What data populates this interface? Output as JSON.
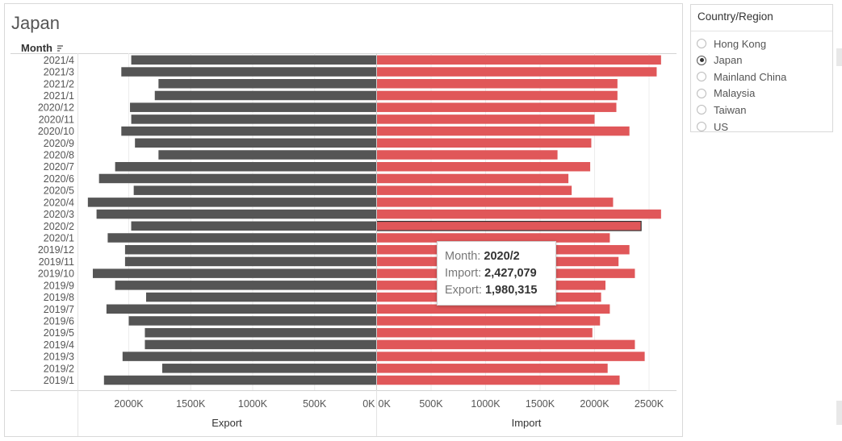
{
  "title": "Japan",
  "header": {
    "month_label": "Month"
  },
  "legend": {
    "title": "Country/Region",
    "selected": "Japan",
    "options": [
      "Hong Kong",
      "Japan",
      "Mainland China",
      "Malaysia",
      "Taiwan",
      "US"
    ]
  },
  "tooltip": {
    "month_label": "Month:",
    "month_value": "2020/2",
    "import_label": "Import:",
    "import_value": "2,427,079",
    "export_label": "Export:",
    "export_value": "1,980,315"
  },
  "colors": {
    "export": "#555555",
    "import": "#e05759",
    "highlight_border": "#333333"
  },
  "chart_data": {
    "type": "bar",
    "orientation": "horizontal",
    "categories": [
      "2021/4",
      "2021/3",
      "2021/2",
      "2021/1",
      "2020/12",
      "2020/11",
      "2020/10",
      "2020/9",
      "2020/8",
      "2020/7",
      "2020/6",
      "2020/5",
      "2020/4",
      "2020/3",
      "2020/2",
      "2020/1",
      "2019/12",
      "2019/11",
      "2019/10",
      "2019/9",
      "2019/8",
      "2019/7",
      "2019/6",
      "2019/5",
      "2019/4",
      "2019/3",
      "2019/2",
      "2019/1"
    ],
    "series": [
      {
        "name": "Export",
        "values": [
          1980000,
          2060000,
          1760000,
          1790000,
          1990000,
          1980000,
          2060000,
          1950000,
          1760000,
          2110000,
          2240000,
          1960000,
          2330000,
          2260000,
          1980315,
          2170000,
          2030000,
          2030000,
          2290000,
          2110000,
          1860000,
          2180000,
          2000000,
          1870000,
          1870000,
          2050000,
          1730000,
          2200000
        ]
      },
      {
        "name": "Import",
        "values": [
          2610000,
          2570000,
          2210000,
          2210000,
          2200000,
          2000000,
          2320000,
          1970000,
          1660000,
          1960000,
          1760000,
          1790000,
          2170000,
          2610000,
          2427079,
          2140000,
          2320000,
          2220000,
          2370000,
          2100000,
          2060000,
          2140000,
          2050000,
          1980000,
          2370000,
          2460000,
          2120000,
          2230000
        ]
      }
    ],
    "xlabel_left": "Export",
    "xlabel_right": "Import",
    "export_ticks": [
      "2000K",
      "1500K",
      "1000K",
      "500K",
      "0K"
    ],
    "import_ticks": [
      "0K",
      "500K",
      "1000K",
      "1500K",
      "2000K",
      "2500K"
    ],
    "export_tick_values": [
      2000000,
      1500000,
      1000000,
      500000,
      0
    ],
    "import_tick_values": [
      0,
      500000,
      1000000,
      1500000,
      2000000,
      2500000
    ],
    "highlighted_category": "2020/2",
    "grid": true
  }
}
